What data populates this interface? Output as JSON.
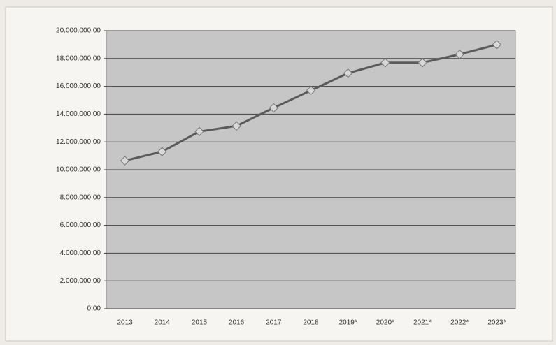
{
  "chart_data": {
    "type": "line",
    "categories": [
      "2013",
      "2014",
      "2015",
      "2016",
      "2017",
      "2018",
      "2019*",
      "2020*",
      "2021*",
      "2022*",
      "2023*"
    ],
    "series": [
      {
        "color": "#5a5a5a",
        "marker_color": "#d8d8d8",
        "values": [
          10650000,
          11300000,
          12750000,
          13150000,
          14450000,
          15700000,
          16950000,
          17700000,
          17700000,
          18300000,
          19000000
        ]
      }
    ],
    "ylim": [
      0,
      20000000
    ],
    "yticks": [
      {
        "value": 0,
        "label": "0,00"
      },
      {
        "value": 2000000,
        "label": "2.000.000,00"
      },
      {
        "value": 4000000,
        "label": "4.000.000,00"
      },
      {
        "value": 6000000,
        "label": "6.000.000,00"
      },
      {
        "value": 8000000,
        "label": "8.000.000,00"
      },
      {
        "value": 10000000,
        "label": "10.000.000,00"
      },
      {
        "value": 12000000,
        "label": "12.000.000,00"
      },
      {
        "value": 14000000,
        "label": "14.000.000,00"
      },
      {
        "value": 16000000,
        "label": "16.000.000,00"
      },
      {
        "value": 18000000,
        "label": "18.000.000,00"
      },
      {
        "value": 20000000,
        "label": "20.000.000,00"
      }
    ],
    "grid": true
  }
}
